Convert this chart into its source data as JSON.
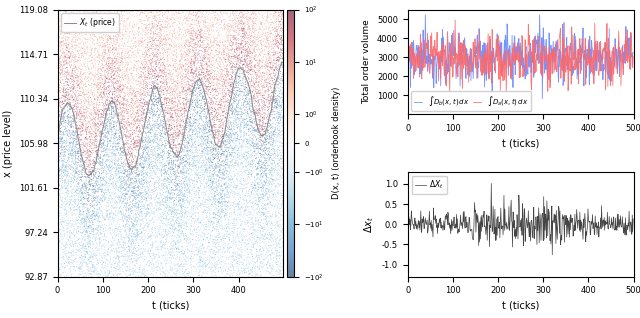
{
  "n_ticks": 500,
  "price_min": 92.87,
  "price_max": 119.08,
  "price_yticks": [
    92.87,
    97.24,
    101.61,
    105.98,
    110.34,
    114.71,
    119.08
  ],
  "colorbar_label": "D(x, t) (orderbook density)",
  "left_xlabel": "t (ticks)",
  "left_ylabel": "x (price level)",
  "top_right_ylabel": "Total order volume",
  "top_right_xlabel": "t (ticks)",
  "top_right_legend_bid": "$\\int D_b(x,t)\\,dx$",
  "top_right_legend_ask": "$\\int D_a(x,t)\\,dx$",
  "bottom_right_ylabel": "$\\Delta x_t$",
  "bottom_right_xlabel": "t (ticks)",
  "bottom_right_legend": "$\\Delta X_t$",
  "bid_color": "#6688ff",
  "ask_color": "#ff6666",
  "price_line_color": "#888888",
  "delta_line_color": "#444444",
  "seed": 42
}
